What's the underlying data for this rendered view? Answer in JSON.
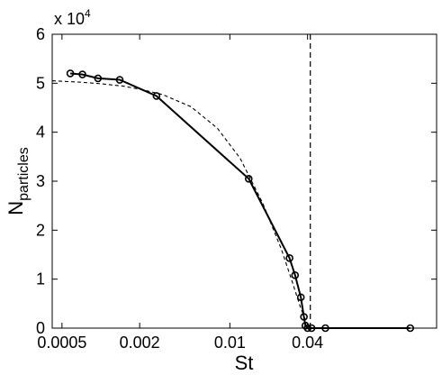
{
  "chart_data": {
    "type": "line",
    "xlabel": "St",
    "ylabel": "N",
    "ylabel_subscript": "particles",
    "y_multiplier_label": {
      "prefix": "x 10",
      "exponent": "4"
    },
    "x_scale": "log",
    "xlim": [
      0.00042,
      0.4
    ],
    "ylim": [
      0,
      60000
    ],
    "x_ticks": [
      {
        "value": 0.0005,
        "label": "0.0005"
      },
      {
        "value": 0.002,
        "label": "0.002"
      },
      {
        "value": 0.01,
        "label": "0.01"
      },
      {
        "value": 0.04,
        "label": "0.04"
      }
    ],
    "y_ticks": [
      {
        "value": 0,
        "label": "0"
      },
      {
        "value": 10000,
        "label": "1"
      },
      {
        "value": 20000,
        "label": "2"
      },
      {
        "value": 30000,
        "label": "3"
      },
      {
        "value": 40000,
        "label": "4"
      },
      {
        "value": 50000,
        "label": "5"
      },
      {
        "value": 60000,
        "label": "6"
      }
    ],
    "grid": false,
    "legend": "none",
    "series": [
      {
        "style": "solid-with-circle-markers",
        "color": "#000000",
        "x": [
          0.00058,
          0.00072,
          0.00095,
          0.0014,
          0.0027,
          0.014,
          0.029,
          0.032,
          0.0355,
          0.0375,
          0.0385,
          0.04,
          0.043,
          0.055,
          0.25
        ],
        "y": [
          52000,
          51800,
          51000,
          50700,
          47400,
          30500,
          14300,
          10800,
          6300,
          2300,
          500,
          0,
          0,
          0,
          0
        ]
      },
      {
        "style": "dashed",
        "color": "#000000",
        "x": [
          0.00042,
          0.0007,
          0.001,
          0.0015,
          0.002,
          0.003,
          0.005,
          0.008,
          0.012,
          0.018,
          0.025,
          0.03,
          0.035,
          0.038,
          0.04,
          0.042,
          0.043
        ],
        "y": [
          50500,
          50200,
          49900,
          49400,
          48800,
          47700,
          45200,
          40800,
          34700,
          25500,
          16200,
          10000,
          4500,
          2000,
          900,
          200,
          0
        ]
      }
    ],
    "vertical_reference_line": {
      "x": 0.042,
      "style": "dashed"
    }
  }
}
